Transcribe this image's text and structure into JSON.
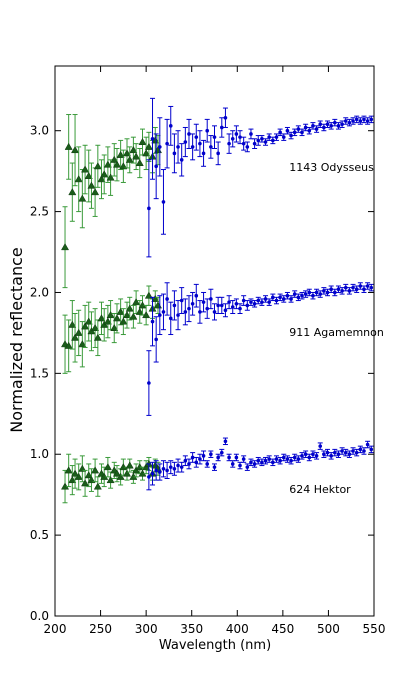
{
  "chart_data": {
    "type": "scatter",
    "title": "",
    "xlabel": "Wavelength (nm)",
    "ylabel": "Normalized reflectance",
    "xlim": [
      200,
      550
    ],
    "ylim": [
      0.0,
      3.4
    ],
    "grid": false,
    "legend": "none",
    "x_ticks": [
      200,
      250,
      300,
      350,
      400,
      450,
      500,
      550
    ],
    "y_ticks": [
      0.0,
      0.5,
      1.0,
      1.5,
      2.0,
      2.5,
      3.0
    ],
    "x_tick_labels": [
      "200",
      "250",
      "300",
      "350",
      "400",
      "450",
      "500",
      "550"
    ],
    "y_tick_labels": [
      "0.0",
      "0.5",
      "1.0",
      "1.5",
      "2.0",
      "2.5",
      "3.0"
    ],
    "annotations": [
      {
        "text": "1143 Odysseus",
        "x": 457,
        "y": 2.75
      },
      {
        "text": "911 Agamemnon",
        "x": 457,
        "y": 1.73
      },
      {
        "text": "624 Hektor",
        "x": 457,
        "y": 0.76
      }
    ],
    "colors": {
      "uv": "#1a5c1a",
      "uv_err": "#3a9a3a",
      "vis": "#0000cc"
    },
    "series": [
      {
        "group": "1143 Odysseus",
        "marker": "triangle",
        "color": "#1a5c1a",
        "x": [
          211,
          215,
          219,
          222,
          226,
          230,
          233,
          237,
          240,
          244,
          247,
          251,
          254,
          258,
          261,
          265,
          268,
          272,
          275,
          279,
          282,
          286,
          289,
          293,
          296,
          300,
          303,
          307,
          310,
          313
        ],
        "y": [
          2.28,
          2.9,
          2.62,
          2.88,
          2.7,
          2.58,
          2.76,
          2.72,
          2.66,
          2.62,
          2.78,
          2.7,
          2.73,
          2.79,
          2.71,
          2.82,
          2.79,
          2.85,
          2.78,
          2.86,
          2.82,
          2.88,
          2.84,
          2.8,
          2.93,
          2.86,
          2.9,
          2.84,
          2.94,
          2.88
        ],
        "err": [
          0.25,
          0.2,
          0.18,
          0.22,
          0.2,
          0.18,
          0.15,
          0.16,
          0.14,
          0.15,
          0.13,
          0.12,
          0.12,
          0.11,
          0.11,
          0.1,
          0.1,
          0.09,
          0.1,
          0.09,
          0.08,
          0.08,
          0.08,
          0.09,
          0.08,
          0.1,
          0.09,
          0.1,
          0.08,
          0.09
        ]
      },
      {
        "group": "1143 Odysseus",
        "marker": "dot",
        "color": "#0000cc",
        "x": [
          303,
          307,
          311,
          315,
          319,
          323,
          327,
          331,
          335,
          339,
          343,
          347,
          351,
          355,
          359,
          363,
          367,
          371,
          375,
          379,
          383,
          387,
          391,
          395,
          399,
          403,
          407,
          411,
          415,
          419,
          423,
          427,
          431,
          435,
          439,
          443,
          447,
          451,
          455,
          459,
          463,
          467,
          471,
          475,
          479,
          483,
          487,
          491,
          495,
          499,
          503,
          507,
          511,
          515,
          519,
          523,
          527,
          531,
          535,
          539,
          543,
          547
        ],
        "y": [
          2.52,
          2.95,
          2.78,
          2.9,
          2.56,
          2.92,
          3.03,
          2.86,
          2.9,
          2.82,
          2.93,
          2.98,
          2.9,
          2.96,
          2.92,
          2.86,
          3.0,
          2.9,
          2.96,
          2.86,
          3.02,
          3.08,
          2.92,
          2.95,
          2.98,
          2.96,
          2.92,
          2.9,
          2.98,
          2.92,
          2.94,
          2.95,
          2.93,
          2.96,
          2.94,
          2.96,
          2.99,
          2.96,
          3.0,
          2.97,
          2.99,
          3.01,
          2.99,
          3.02,
          3.0,
          3.03,
          3.01,
          3.04,
          3.02,
          3.04,
          3.03,
          3.05,
          3.03,
          3.04,
          3.06,
          3.05,
          3.06,
          3.07,
          3.06,
          3.07,
          3.06,
          3.07
        ],
        "err": [
          0.3,
          0.25,
          0.2,
          0.18,
          0.2,
          0.15,
          0.12,
          0.12,
          0.1,
          0.1,
          0.09,
          0.09,
          0.08,
          0.08,
          0.08,
          0.08,
          0.07,
          0.07,
          0.07,
          0.07,
          0.06,
          0.06,
          0.06,
          0.05,
          0.05,
          0.04,
          0.04,
          0.03,
          0.03,
          0.03,
          0.03,
          0.02,
          0.02,
          0.02,
          0.02,
          0.02,
          0.02,
          0.02,
          0.02,
          0.02,
          0.02,
          0.02,
          0.02,
          0.02,
          0.02,
          0.02,
          0.02,
          0.02,
          0.02,
          0.02,
          0.02,
          0.02,
          0.02,
          0.02,
          0.02,
          0.02,
          0.02,
          0.02,
          0.02,
          0.02,
          0.02,
          0.02
        ]
      },
      {
        "group": "911 Agamemnon",
        "marker": "triangle",
        "color": "#1a5c1a",
        "x": [
          211,
          215,
          219,
          222,
          226,
          230,
          233,
          237,
          240,
          244,
          247,
          251,
          254,
          258,
          261,
          265,
          268,
          272,
          275,
          279,
          282,
          286,
          289,
          293,
          296,
          300,
          303,
          307,
          310,
          313
        ],
        "y": [
          1.68,
          1.67,
          1.8,
          1.72,
          1.75,
          1.68,
          1.79,
          1.82,
          1.76,
          1.78,
          1.72,
          1.84,
          1.8,
          1.82,
          1.86,
          1.78,
          1.84,
          1.88,
          1.82,
          1.86,
          1.9,
          1.85,
          1.94,
          1.88,
          1.92,
          1.86,
          1.98,
          1.9,
          1.96,
          1.92
        ],
        "err": [
          0.18,
          0.16,
          0.15,
          0.15,
          0.14,
          0.14,
          0.13,
          0.12,
          0.12,
          0.12,
          0.11,
          0.1,
          0.1,
          0.1,
          0.09,
          0.09,
          0.09,
          0.08,
          0.08,
          0.08,
          0.07,
          0.07,
          0.07,
          0.07,
          0.06,
          0.06,
          0.06,
          0.06,
          0.05,
          0.05
        ]
      },
      {
        "group": "911 Agamemnon",
        "marker": "dot",
        "color": "#0000cc",
        "x": [
          303,
          307,
          311,
          315,
          319,
          323,
          327,
          331,
          335,
          339,
          343,
          347,
          351,
          355,
          359,
          363,
          367,
          371,
          375,
          379,
          383,
          387,
          391,
          395,
          399,
          403,
          407,
          411,
          415,
          419,
          423,
          427,
          431,
          435,
          439,
          443,
          447,
          451,
          455,
          459,
          463,
          467,
          471,
          475,
          479,
          483,
          487,
          491,
          495,
          499,
          503,
          507,
          511,
          515,
          519,
          523,
          527,
          531,
          535,
          539,
          543,
          547
        ],
        "y": [
          1.44,
          1.82,
          1.71,
          1.86,
          1.88,
          1.96,
          1.84,
          1.92,
          1.86,
          1.95,
          1.88,
          1.9,
          1.93,
          1.98,
          1.88,
          1.94,
          1.9,
          1.96,
          1.88,
          1.92,
          1.92,
          1.89,
          1.94,
          1.91,
          1.93,
          1.9,
          1.95,
          1.92,
          1.94,
          1.93,
          1.95,
          1.94,
          1.96,
          1.94,
          1.97,
          1.95,
          1.97,
          1.96,
          1.98,
          1.96,
          1.99,
          1.97,
          1.98,
          1.99,
          2.0,
          1.98,
          2.0,
          1.99,
          2.01,
          2.0,
          2.02,
          2.0,
          2.02,
          2.01,
          2.03,
          2.01,
          2.03,
          2.02,
          2.04,
          2.02,
          2.04,
          2.03
        ],
        "err": [
          0.2,
          0.15,
          0.14,
          0.12,
          0.11,
          0.1,
          0.1,
          0.09,
          0.09,
          0.08,
          0.08,
          0.08,
          0.07,
          0.07,
          0.07,
          0.06,
          0.06,
          0.06,
          0.05,
          0.05,
          0.05,
          0.04,
          0.04,
          0.04,
          0.03,
          0.03,
          0.03,
          0.03,
          0.02,
          0.02,
          0.02,
          0.02,
          0.02,
          0.02,
          0.02,
          0.02,
          0.02,
          0.02,
          0.02,
          0.02,
          0.02,
          0.02,
          0.02,
          0.02,
          0.02,
          0.02,
          0.02,
          0.02,
          0.02,
          0.02,
          0.02,
          0.02,
          0.02,
          0.02,
          0.02,
          0.02,
          0.02,
          0.02,
          0.02,
          0.02,
          0.02,
          0.02
        ]
      },
      {
        "group": "624 Hektor",
        "marker": "triangle",
        "color": "#1a5c1a",
        "x": [
          211,
          215,
          219,
          222,
          226,
          230,
          233,
          237,
          240,
          244,
          247,
          251,
          254,
          258,
          261,
          265,
          268,
          272,
          275,
          279,
          282,
          286,
          289,
          293,
          296,
          300,
          303,
          307,
          310,
          313
        ],
        "y": [
          0.8,
          0.9,
          0.84,
          0.88,
          0.86,
          0.91,
          0.82,
          0.87,
          0.84,
          0.9,
          0.8,
          0.88,
          0.86,
          0.92,
          0.84,
          0.9,
          0.88,
          0.86,
          0.92,
          0.88,
          0.93,
          0.86,
          0.9,
          0.92,
          0.88,
          0.92,
          0.94,
          0.88,
          0.93,
          0.91
        ],
        "err": [
          0.1,
          0.1,
          0.09,
          0.09,
          0.08,
          0.08,
          0.08,
          0.07,
          0.07,
          0.07,
          0.06,
          0.06,
          0.06,
          0.06,
          0.05,
          0.05,
          0.05,
          0.05,
          0.05,
          0.04,
          0.04,
          0.04,
          0.04,
          0.04,
          0.04,
          0.04,
          0.04,
          0.04,
          0.04,
          0.04
        ]
      },
      {
        "group": "624 Hektor",
        "marker": "dot",
        "color": "#0000cc",
        "x": [
          303,
          307,
          311,
          315,
          319,
          323,
          327,
          331,
          335,
          339,
          343,
          347,
          351,
          355,
          359,
          363,
          367,
          371,
          375,
          379,
          383,
          387,
          391,
          395,
          399,
          403,
          407,
          411,
          415,
          419,
          423,
          427,
          431,
          435,
          439,
          443,
          447,
          451,
          455,
          459,
          463,
          467,
          471,
          475,
          479,
          483,
          487,
          491,
          495,
          499,
          503,
          507,
          511,
          515,
          519,
          523,
          527,
          531,
          535,
          539,
          543,
          547
        ],
        "y": [
          0.86,
          0.88,
          0.9,
          0.89,
          0.91,
          0.9,
          0.92,
          0.91,
          0.93,
          0.92,
          0.96,
          0.94,
          0.98,
          0.95,
          0.97,
          0.99,
          0.94,
          1.0,
          0.92,
          0.98,
          1.01,
          1.08,
          0.98,
          0.94,
          0.98,
          0.93,
          0.97,
          0.92,
          0.95,
          0.94,
          0.96,
          0.95,
          0.96,
          0.97,
          0.95,
          0.97,
          0.96,
          0.98,
          0.97,
          0.96,
          0.98,
          0.97,
          0.99,
          1.0,
          0.98,
          1.0,
          0.99,
          1.05,
          1.0,
          1.01,
          0.99,
          1.01,
          1.0,
          1.02,
          1.01,
          1.0,
          1.02,
          1.01,
          1.03,
          1.02,
          1.06,
          1.03
        ],
        "err": [
          0.08,
          0.07,
          0.06,
          0.05,
          0.05,
          0.05,
          0.04,
          0.04,
          0.04,
          0.03,
          0.03,
          0.03,
          0.03,
          0.03,
          0.03,
          0.03,
          0.02,
          0.02,
          0.02,
          0.02,
          0.02,
          0.02,
          0.02,
          0.02,
          0.02,
          0.02,
          0.02,
          0.02,
          0.02,
          0.02,
          0.02,
          0.02,
          0.02,
          0.02,
          0.02,
          0.02,
          0.02,
          0.02,
          0.02,
          0.02,
          0.02,
          0.02,
          0.02,
          0.02,
          0.02,
          0.02,
          0.02,
          0.02,
          0.02,
          0.02,
          0.02,
          0.02,
          0.02,
          0.02,
          0.02,
          0.02,
          0.02,
          0.02,
          0.02,
          0.02,
          0.02,
          0.02
        ]
      }
    ]
  }
}
